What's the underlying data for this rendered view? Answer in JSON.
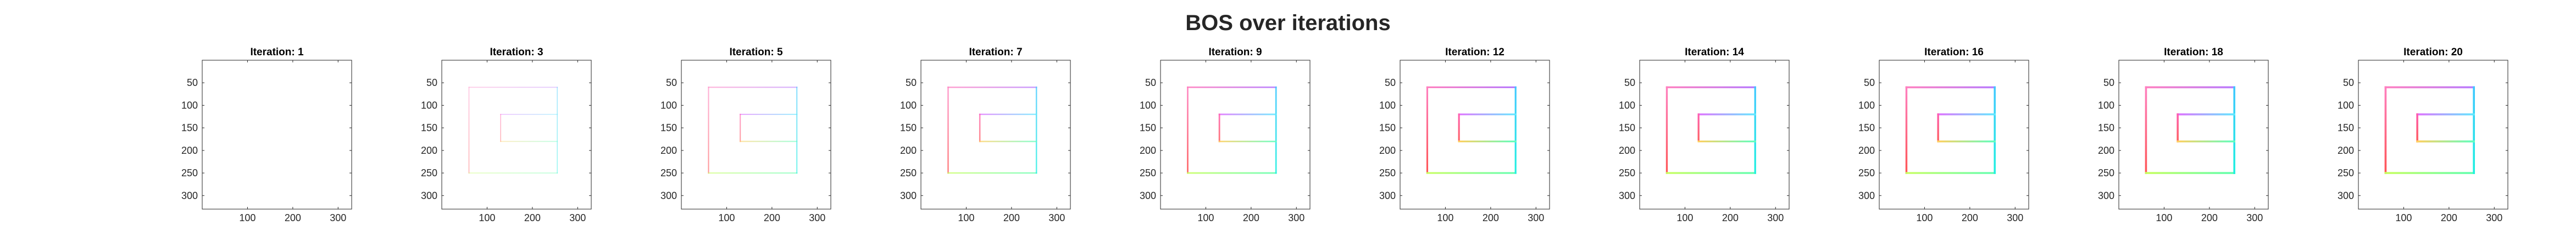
{
  "chart_data": {
    "type": "line",
    "title": "BOS over iterations",
    "xlim": [
      0,
      330
    ],
    "ylim": [
      0,
      330
    ],
    "y_reversed": true,
    "xticks": [
      100,
      200,
      300
    ],
    "yticks": [
      50,
      100,
      150,
      200,
      250,
      300
    ],
    "panels": [
      {
        "title": "Iteration: 1",
        "alpha": 0.0
      },
      {
        "title": "Iteration: 3",
        "alpha": 0.18
      },
      {
        "title": "Iteration: 5",
        "alpha": 0.35
      },
      {
        "title": "Iteration: 7",
        "alpha": 0.5
      },
      {
        "title": "Iteration: 9",
        "alpha": 0.62
      },
      {
        "title": "Iteration: 12",
        "alpha": 0.75
      },
      {
        "title": "Iteration: 14",
        "alpha": 0.82
      },
      {
        "title": "Iteration: 16",
        "alpha": 0.88
      },
      {
        "title": "Iteration: 18",
        "alpha": 0.92
      },
      {
        "title": "Iteration: 20",
        "alpha": 0.95
      }
    ],
    "segments": [
      {
        "x": [
          255,
          60
        ],
        "y": [
          60,
          60
        ],
        "color_start": "#b87cff",
        "color_end": "#ff80c0"
      },
      {
        "x": [
          60,
          60
        ],
        "y": [
          60,
          250
        ],
        "color_start": "#ff80c0",
        "color_end": "#ff5555"
      },
      {
        "x": [
          60,
          255
        ],
        "y": [
          250,
          250
        ],
        "color_start": "#c8ff60",
        "color_end": "#60ffb0"
      },
      {
        "x": [
          255,
          255
        ],
        "y": [
          250,
          60
        ],
        "color_start": "#20f0e0",
        "color_end": "#40c8ff"
      },
      {
        "x": [
          255,
          130
        ],
        "y": [
          120,
          120
        ],
        "color_start": "#60e8ff",
        "color_end": "#e070ff"
      },
      {
        "x": [
          130,
          130
        ],
        "y": [
          120,
          180
        ],
        "color_start": "#ff60b0",
        "color_end": "#ff6060"
      },
      {
        "x": [
          130,
          255
        ],
        "y": [
          180,
          180
        ],
        "color_start": "#ffd060",
        "color_end": "#60ffc0"
      }
    ]
  }
}
